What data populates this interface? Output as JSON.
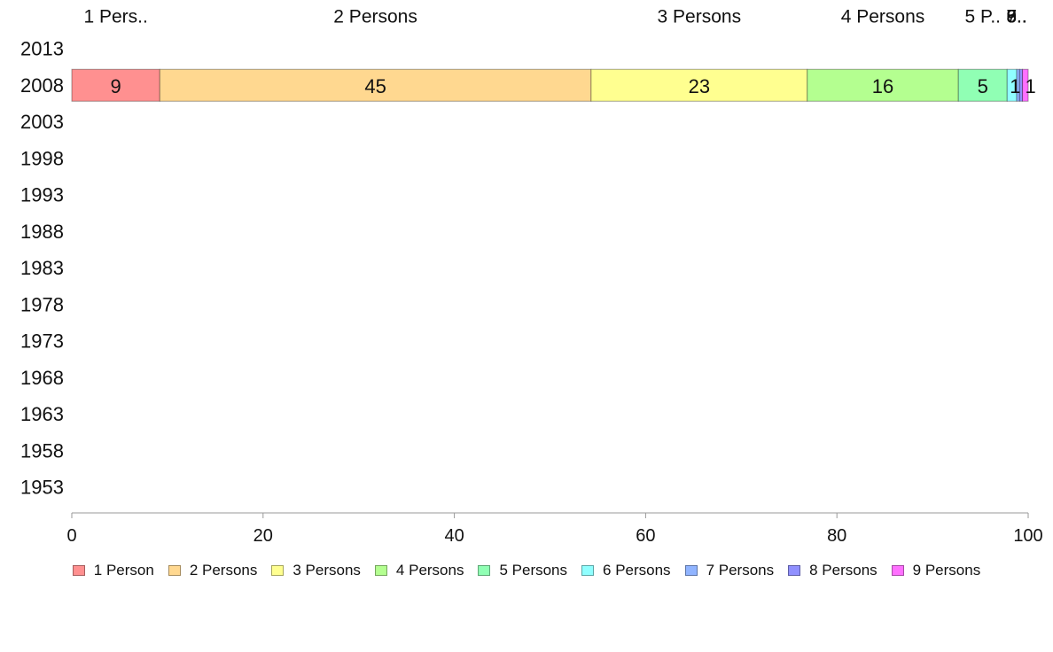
{
  "chart_data": {
    "type": "bar",
    "orientation": "horizontal",
    "stacked": true,
    "categories": [
      "2013",
      "2008",
      "2003",
      "1998",
      "1993",
      "1988",
      "1983",
      "1978",
      "1973",
      "1968",
      "1963",
      "1958",
      "1953"
    ],
    "series": [
      {
        "name": "1 Person",
        "color": "#ff9090",
        "values": [
          null,
          9.2,
          null,
          null,
          null,
          null,
          null,
          null,
          null,
          null,
          null,
          null,
          null
        ]
      },
      {
        "name": "2 Persons",
        "color": "#ffd890",
        "values": [
          null,
          45.1,
          null,
          null,
          null,
          null,
          null,
          null,
          null,
          null,
          null,
          null,
          null
        ]
      },
      {
        "name": "3 Persons",
        "color": "#ffff90",
        "values": [
          null,
          22.6,
          null,
          null,
          null,
          null,
          null,
          null,
          null,
          null,
          null,
          null,
          null
        ]
      },
      {
        "name": "4 Persons",
        "color": "#b4ff90",
        "values": [
          null,
          15.8,
          null,
          null,
          null,
          null,
          null,
          null,
          null,
          null,
          null,
          null,
          null
        ]
      },
      {
        "name": "5 Persons",
        "color": "#90ffb4",
        "values": [
          null,
          5.1,
          null,
          null,
          null,
          null,
          null,
          null,
          null,
          null,
          null,
          null,
          null
        ]
      },
      {
        "name": "6 Persons",
        "color": "#90ffff",
        "values": [
          null,
          1.0,
          null,
          null,
          null,
          null,
          null,
          null,
          null,
          null,
          null,
          null,
          null
        ]
      },
      {
        "name": "7 Persons",
        "color": "#90b4ff",
        "values": [
          null,
          0.3,
          null,
          null,
          null,
          null,
          null,
          null,
          null,
          null,
          null,
          null,
          null
        ]
      },
      {
        "name": "8 Persons",
        "color": "#9090ff",
        "values": [
          null,
          0.3,
          null,
          null,
          null,
          null,
          null,
          null,
          null,
          null,
          null,
          null,
          null
        ]
      },
      {
        "name": "9 Persons",
        "color": "#ff70ff",
        "values": [
          null,
          0.6,
          null,
          null,
          null,
          null,
          null,
          null,
          null,
          null,
          null,
          null,
          null
        ]
      }
    ],
    "data_labels": [
      "9",
      "45",
      "23",
      "16",
      "5",
      "1",
      "",
      "",
      "1"
    ],
    "top_labels": [
      "1 Pers..",
      "2 Persons",
      "3 Persons",
      "4 Persons",
      "5 P..",
      "6..",
      "7..",
      "8..",
      "9.."
    ],
    "x_ticks": [
      "0",
      "20",
      "40",
      "60",
      "80",
      "100"
    ],
    "xlim": [
      0,
      100
    ],
    "xlabel": "",
    "ylabel": "",
    "title": "",
    "grid": false,
    "legend_position": "bottom"
  }
}
